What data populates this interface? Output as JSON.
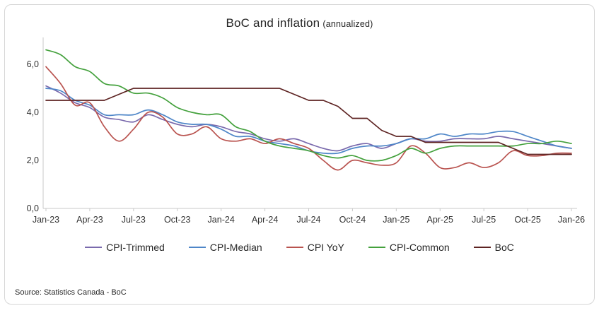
{
  "source": "Source: Statistics Canada - BoC",
  "chart_data": {
    "type": "line",
    "title": "BoC and inflation",
    "subtitle": "(annualized)",
    "xlabel": "",
    "ylabel": "",
    "ylim": [
      0,
      7
    ],
    "yticks": [
      0,
      2,
      4,
      6
    ],
    "ytick_labels": [
      "0,0",
      "2,0",
      "4,0",
      "6,0"
    ],
    "grid": false,
    "legend_position": "bottom",
    "axis_color": "#c9c9c9",
    "x": [
      "Jan-23",
      "Feb-23",
      "Mar-23",
      "Apr-23",
      "May-23",
      "Jun-23",
      "Jul-23",
      "Aug-23",
      "Sep-23",
      "Oct-23",
      "Nov-23",
      "Dec-23",
      "Jan-24",
      "Feb-24",
      "Mar-24",
      "Apr-24",
      "May-24",
      "Jun-24",
      "Jul-24",
      "Aug-24",
      "Sep-24",
      "Oct-24",
      "Nov-24",
      "Dec-24",
      "Jan-25",
      "Feb-25",
      "Mar-25",
      "Apr-25",
      "May-25",
      "Jun-25",
      "Jul-25",
      "Aug-25",
      "Sep-25",
      "Oct-25",
      "Nov-25",
      "Dec-25",
      "Jan-26"
    ],
    "xtick_labels": [
      "Jan-23",
      "Apr-23",
      "Jul-23",
      "Oct-23",
      "Jan-24",
      "Apr-24",
      "Jul-24",
      "Oct-24",
      "Jan-25",
      "Apr-25",
      "Jul-25",
      "Oct-25",
      "Jan-26"
    ],
    "series": [
      {
        "name": "CPI-Trimmed",
        "color": "#7a6aad",
        "smooth": true,
        "values": [
          5.1,
          4.8,
          4.4,
          4.2,
          3.8,
          3.7,
          3.6,
          3.9,
          3.7,
          3.5,
          3.4,
          3.5,
          3.4,
          3.2,
          3.1,
          2.9,
          2.8,
          2.9,
          2.7,
          2.5,
          2.4,
          2.6,
          2.7,
          2.5,
          2.7,
          2.9,
          2.8,
          2.8,
          2.9,
          2.9,
          2.9,
          3.0,
          2.9,
          2.8,
          2.7,
          2.6,
          2.5
        ]
      },
      {
        "name": "CPI-Median",
        "color": "#4e86c8",
        "smooth": true,
        "values": [
          5.0,
          4.9,
          4.5,
          4.3,
          3.9,
          3.9,
          3.9,
          4.1,
          3.9,
          3.6,
          3.5,
          3.5,
          3.3,
          3.0,
          3.0,
          2.8,
          2.7,
          2.6,
          2.4,
          2.3,
          2.3,
          2.5,
          2.6,
          2.6,
          2.7,
          2.9,
          2.9,
          3.1,
          3.0,
          3.1,
          3.1,
          3.2,
          3.2,
          3.0,
          2.8,
          2.6,
          2.5
        ]
      },
      {
        "name": "CPI YoY",
        "color": "#b9534f",
        "smooth": true,
        "values": [
          5.9,
          5.2,
          4.3,
          4.4,
          3.4,
          2.8,
          3.3,
          4.0,
          3.8,
          3.1,
          3.1,
          3.4,
          2.9,
          2.8,
          2.9,
          2.7,
          2.9,
          2.7,
          2.5,
          2.0,
          1.6,
          2.0,
          1.9,
          1.8,
          1.9,
          2.6,
          2.3,
          1.7,
          1.7,
          1.9,
          1.7,
          1.9,
          2.4,
          2.2,
          2.2,
          2.3,
          2.3
        ]
      },
      {
        "name": "CPI-Common",
        "color": "#44a13d",
        "smooth": true,
        "values": [
          6.6,
          6.4,
          5.9,
          5.7,
          5.2,
          5.1,
          4.8,
          4.8,
          4.6,
          4.2,
          4.0,
          3.9,
          3.9,
          3.4,
          3.2,
          2.8,
          2.6,
          2.5,
          2.4,
          2.2,
          2.1,
          2.2,
          2.0,
          2.0,
          2.2,
          2.5,
          2.3,
          2.5,
          2.6,
          2.6,
          2.6,
          2.6,
          2.6,
          2.7,
          2.7,
          2.8,
          2.7
        ]
      },
      {
        "name": "BoC",
        "color": "#5e2423",
        "smooth": false,
        "values": [
          4.5,
          4.5,
          4.5,
          4.5,
          4.5,
          4.75,
          5.0,
          5.0,
          5.0,
          5.0,
          5.0,
          5.0,
          5.0,
          5.0,
          5.0,
          5.0,
          5.0,
          4.75,
          4.5,
          4.5,
          4.25,
          3.75,
          3.75,
          3.25,
          3.0,
          3.0,
          2.75,
          2.75,
          2.75,
          2.75,
          2.75,
          2.75,
          2.5,
          2.25,
          2.25,
          2.25,
          2.25
        ]
      }
    ]
  }
}
